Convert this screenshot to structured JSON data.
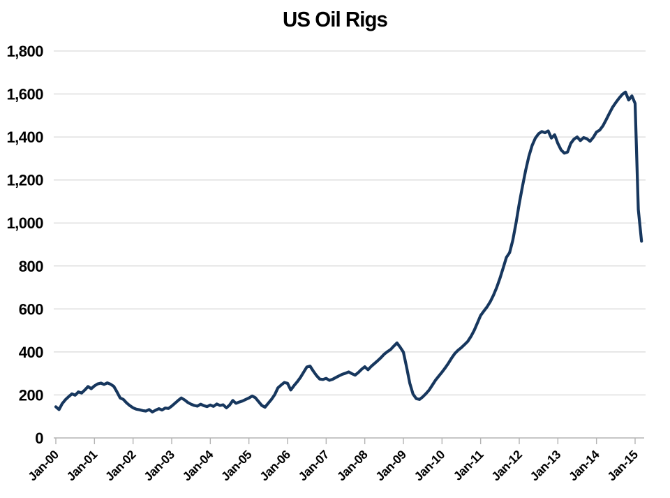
{
  "chart_data": {
    "type": "line",
    "title": "US Oil Rigs",
    "xlabel": "",
    "ylabel": "",
    "ylim": [
      0,
      1800
    ],
    "y_tick_step": 200,
    "y_tick_labels": [
      "0",
      "200",
      "400",
      "600",
      "800",
      "1,000",
      "1,200",
      "1,400",
      "1,600",
      "1,800"
    ],
    "x_tick_labels": [
      "Jan-00",
      "Jan-01",
      "Jan-02",
      "Jan-03",
      "Jan-04",
      "Jan-05",
      "Jan-06",
      "Jan-07",
      "Jan-08",
      "Jan-09",
      "Jan-10",
      "Jan-11",
      "Jan-12",
      "Jan-13",
      "Jan-14",
      "Jan-15"
    ],
    "x_start": "Jan-2000",
    "x_interval": "monthly",
    "x_ticks_every_months": 12,
    "grid": "horizontal",
    "legend_position": "none",
    "colors": {
      "line": "#17375e",
      "grid": "#d9d9d9",
      "axis": "#b3b3b3",
      "text": "#000000",
      "background": "#ffffff"
    },
    "series": [
      {
        "name": "US oil rig count",
        "values": [
          145,
          132,
          160,
          178,
          192,
          205,
          199,
          214,
          209,
          223,
          239,
          229,
          242,
          251,
          255,
          249,
          256,
          250,
          240,
          214,
          186,
          179,
          163,
          150,
          140,
          134,
          131,
          127,
          125,
          132,
          121,
          129,
          136,
          130,
          139,
          137,
          148,
          161,
          174,
          186,
          177,
          165,
          157,
          151,
          148,
          157,
          150,
          146,
          153,
          147,
          158,
          151,
          154,
          140,
          153,
          174,
          161,
          167,
          172,
          179,
          186,
          195,
          187,
          169,
          151,
          143,
          161,
          179,
          201,
          233,
          246,
          258,
          254,
          223,
          243,
          261,
          281,
          306,
          330,
          334,
          311,
          290,
          274,
          272,
          277,
          268,
          273,
          281,
          289,
          296,
          301,
          307,
          299,
          292,
          304,
          319,
          331,
          317,
          333,
          346,
          359,
          373,
          389,
          401,
          411,
          427,
          442,
          422,
          399,
          329,
          254,
          204,
          183,
          179,
          191,
          206,
          223,
          246,
          269,
          288,
          306,
          326,
          348,
          372,
          393,
          408,
          420,
          434,
          449,
          472,
          500,
          535,
          570,
          590,
          610,
          634,
          664,
          700,
          742,
          790,
          840,
          862,
          920,
          1000,
          1090,
          1170,
          1245,
          1310,
          1360,
          1395,
          1415,
          1425,
          1420,
          1428,
          1395,
          1410,
          1370,
          1340,
          1325,
          1330,
          1370,
          1390,
          1400,
          1383,
          1397,
          1392,
          1380,
          1398,
          1423,
          1432,
          1452,
          1480,
          1510,
          1538,
          1560,
          1580,
          1598,
          1609,
          1572,
          1591,
          1556,
          1062,
          915
        ]
      }
    ]
  }
}
